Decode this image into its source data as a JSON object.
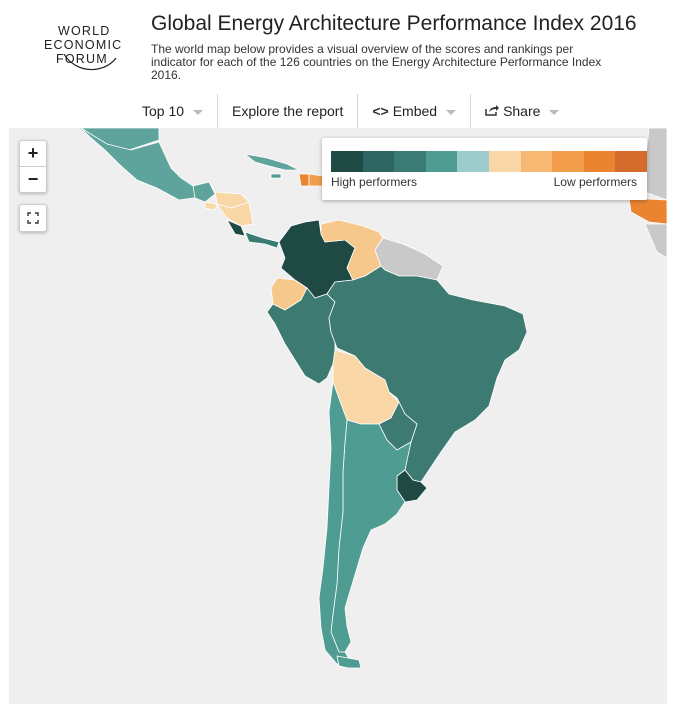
{
  "logo": {
    "line1": "WORLD",
    "line2": "ECONOMIC",
    "line3": "FORUM"
  },
  "header": {
    "title": "Global Energy Architecture Performance Index 2016",
    "description": "The world map below provides a visual overview of the scores and rankings per indicator for each of the 126 countries on the Energy Architecture Performance Index 2016."
  },
  "toolbar": {
    "top10_label": "Top 10",
    "explore_label": "Explore the report",
    "embed_icon": "<>",
    "embed_label": "Embed",
    "share_label": "Share"
  },
  "map_controls": {
    "zoom_in": "+",
    "zoom_out": "−"
  },
  "legend": {
    "high_label": "High performers",
    "low_label": "Low performers",
    "colors": [
      "#1f4a44",
      "#2d6660",
      "#3a7c73",
      "#4e9c92",
      "#9ccccb",
      "#f9d7a6",
      "#f7b874",
      "#f19d4c",
      "#eb8430",
      "#d36c2a"
    ]
  },
  "map": {
    "background": "#efefef",
    "no_data_color": "#c9c9c9",
    "countries": [
      {
        "name": "mexico",
        "color": "#5ea49c"
      },
      {
        "name": "usa",
        "color": "#5ea49c"
      },
      {
        "name": "cuba",
        "color": "#5ea49c"
      },
      {
        "name": "jamaica",
        "color": "#4e9c92"
      },
      {
        "name": "haiti",
        "color": "#eb8430"
      },
      {
        "name": "dominican-republic",
        "color": "#f19d4c"
      },
      {
        "name": "guatemala",
        "color": "#5ea49c"
      },
      {
        "name": "honduras",
        "color": "#f9d7a6"
      },
      {
        "name": "el-salvador",
        "color": "#f9d7a6"
      },
      {
        "name": "nicaragua",
        "color": "#f9d7a6"
      },
      {
        "name": "costa-rica",
        "color": "#1f4a44"
      },
      {
        "name": "panama",
        "color": "#3a7c73"
      },
      {
        "name": "colombia",
        "color": "#1f4a44"
      },
      {
        "name": "venezuela",
        "color": "#f7c88b"
      },
      {
        "name": "guyanas",
        "color": "#c9c9c9"
      },
      {
        "name": "ecuador",
        "color": "#f7c88b"
      },
      {
        "name": "peru",
        "color": "#3d7a72"
      },
      {
        "name": "brazil",
        "color": "#3d7a72"
      },
      {
        "name": "bolivia",
        "color": "#f9d7a6"
      },
      {
        "name": "paraguay",
        "color": "#3d7a72"
      },
      {
        "name": "uruguay",
        "color": "#1f4a44"
      },
      {
        "name": "chile",
        "color": "#4e9c92"
      },
      {
        "name": "argentina",
        "color": "#4e9c92"
      },
      {
        "name": "west-africa",
        "color": "#eb8430"
      }
    ]
  }
}
